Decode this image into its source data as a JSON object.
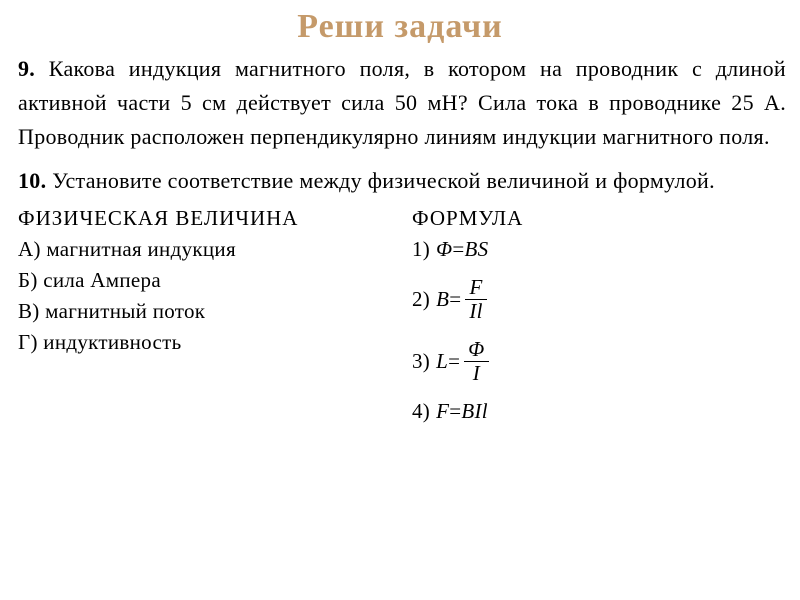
{
  "header": {
    "title": "Реши задачи",
    "color": "#c59a6a",
    "fontsize": 34
  },
  "problem9": {
    "number": "9.",
    "text": "Какова индукция магнитного поля, в котором на проводник с длиной активной части 5 см действует сила 50 мН? Сила тока в проводнике 25 А. Проводник расположен перпендикулярно ли­ниям индукции магнитного поля.",
    "fontsize": 22
  },
  "problem10": {
    "number": "10.",
    "text": "Установите соответствие между физической величиной и формулой.",
    "fontsize": 22
  },
  "leftColumn": {
    "heading": "ФИЗИЧЕСКАЯ ВЕЛИЧИНА",
    "items": [
      {
        "letter": "А)",
        "label": "магнитная индукция"
      },
      {
        "letter": "Б)",
        "label": "сила Ампера"
      },
      {
        "letter": "В)",
        "label": "магнитный поток"
      },
      {
        "letter": "Г)",
        "label": "индуктивность"
      }
    ],
    "fontsize": 21
  },
  "rightColumn": {
    "heading": "ФОРМУЛА",
    "formulas": [
      {
        "num": "1)",
        "lhs": "Φ",
        "eq": "=",
        "rhs": "BS",
        "type": "inline"
      },
      {
        "num": "2)",
        "lhs": "B",
        "eq": "=",
        "top": "F",
        "bot": "Il",
        "type": "frac"
      },
      {
        "num": "3)",
        "lhs": "L",
        "eq": "=",
        "top": "Φ",
        "bot": "I",
        "type": "frac"
      },
      {
        "num": "4)",
        "lhs": "F",
        "eq": "=",
        "rhs": "BIl",
        "type": "inline"
      }
    ],
    "fontsize": 21
  },
  "colors": {
    "background": "#ffffff",
    "text": "#000000"
  }
}
